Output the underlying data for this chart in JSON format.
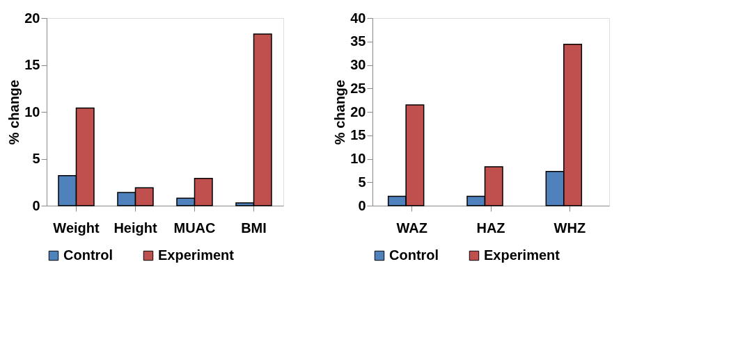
{
  "chart_data": [
    {
      "type": "bar",
      "ylabel": "% change",
      "categories": [
        "Weight",
        "Height",
        "MUAC",
        "BMI"
      ],
      "series": [
        {
          "name": "Control",
          "color": "#4f81bd",
          "values": [
            3.2,
            1.4,
            0.8,
            0.3
          ]
        },
        {
          "name": "Experiment",
          "color": "#c0504d",
          "values": [
            10.4,
            1.9,
            2.9,
            18.3
          ]
        }
      ],
      "ylim": [
        0,
        20
      ],
      "yticks": [
        0,
        5,
        10,
        15,
        20
      ],
      "grid": false,
      "legend": "bottom"
    },
    {
      "type": "bar",
      "ylabel": "% change",
      "categories": [
        "WAZ",
        "HAZ",
        "WHZ"
      ],
      "series": [
        {
          "name": "Control",
          "color": "#4f81bd",
          "values": [
            2.0,
            2.0,
            7.3
          ]
        },
        {
          "name": "Experiment",
          "color": "#c0504d",
          "values": [
            21.5,
            8.3,
            34.4
          ]
        }
      ],
      "ylim": [
        0,
        40
      ],
      "yticks": [
        0,
        5,
        10,
        15,
        20,
        25,
        30,
        35,
        40
      ],
      "grid": false,
      "legend": "bottom"
    }
  ]
}
